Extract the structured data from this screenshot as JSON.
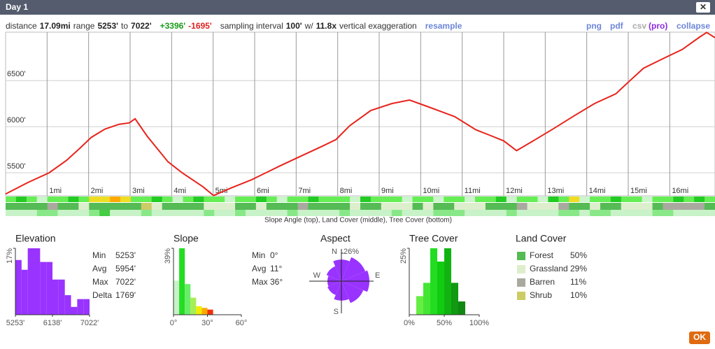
{
  "header": {
    "title": "Day 1",
    "close": "✕"
  },
  "stats_line": [
    {
      "text": "distance",
      "style": "n"
    },
    {
      "text": "17.09mi",
      "style": "b"
    },
    {
      "text": "range",
      "style": "n"
    },
    {
      "text": "5253'",
      "style": "b"
    },
    {
      "text": "to",
      "style": "n"
    },
    {
      "text": "7022'",
      "style": "b"
    },
    {
      "text": "+3396'",
      "style": "g"
    },
    {
      "text": "-1695'",
      "style": "r"
    },
    {
      "text": "sampling interval",
      "style": "n"
    },
    {
      "text": "100'",
      "style": "b"
    },
    {
      "text": "w/",
      "style": "n"
    },
    {
      "text": "11.8x",
      "style": "b"
    },
    {
      "text": "vertical exaggeration",
      "style": "n"
    },
    {
      "text": "resample",
      "style": "link"
    }
  ],
  "links": [
    "png",
    "pdf",
    "csv",
    "(pro)",
    "collapse"
  ],
  "link_colors": [
    "#6d86d8",
    "#6d86d8",
    "#aaaaaa",
    "#8a2be2",
    "#6d86d8"
  ],
  "chart_data": [
    {
      "type": "line",
      "color": "#e8231c",
      "x": [
        0,
        0.54,
        1.05,
        1.47,
        1.8,
        2.06,
        2.39,
        2.73,
        2.98,
        3.12,
        3.41,
        3.91,
        4.25,
        4.75,
        5.01,
        5.43,
        5.93,
        6.61,
        7.11,
        7.62,
        7.96,
        8.29,
        8.8,
        9.31,
        9.73,
        10.15,
        10.82,
        11.33,
        11.67,
        12.0,
        12.31,
        12.68,
        13.18,
        13.69,
        14.19,
        14.7,
        15.04,
        15.37,
        15.88,
        16.3,
        16.72,
        16.89,
        17.09
      ],
      "values": [
        5270,
        5395,
        5500,
        5635,
        5770,
        5883,
        5973,
        6026,
        6041,
        6086,
        5898,
        5620,
        5500,
        5350,
        5253,
        5335,
        5425,
        5575,
        5680,
        5786,
        5861,
        6011,
        6176,
        6251,
        6289,
        6221,
        6109,
        5966,
        5906,
        5846,
        5740,
        5838,
        5973,
        6116,
        6251,
        6356,
        6499,
        6634,
        6747,
        6837,
        6972,
        7022,
        6965
      ],
      "xlim": [
        0,
        17.09
      ],
      "ylim": [
        5250,
        7025
      ],
      "xticks": [
        {
          "value": 1,
          "label": "1mi"
        },
        {
          "value": 2,
          "label": "2mi"
        },
        {
          "value": 3,
          "label": "3mi"
        },
        {
          "value": 4,
          "label": "4mi"
        },
        {
          "value": 5,
          "label": "5mi"
        },
        {
          "value": 6,
          "label": "6mi"
        },
        {
          "value": 7,
          "label": "7mi"
        },
        {
          "value": 8,
          "label": "8mi"
        },
        {
          "value": 9,
          "label": "9mi"
        },
        {
          "value": 10,
          "label": "10mi"
        },
        {
          "value": 11,
          "label": "11mi"
        },
        {
          "value": 12,
          "label": "12mi"
        },
        {
          "value": 13,
          "label": "13mi"
        },
        {
          "value": 14,
          "label": "14mi"
        },
        {
          "value": 15,
          "label": "15mi"
        },
        {
          "value": 16,
          "label": "16mi"
        }
      ],
      "yticks": [
        {
          "value": 5500,
          "label": "5500'"
        },
        {
          "value": 6000,
          "label": "6000'"
        },
        {
          "value": 6500,
          "label": "6500'"
        }
      ],
      "grid": true
    },
    {
      "type": "histogram",
      "title": "Elevation",
      "color": "#9933ff",
      "bins": [
        5253,
        5400.4,
        5547.8,
        5695.3,
        5842.7,
        5990.1,
        6137.5,
        6284.9,
        6432.3,
        6579.8,
        6727.2,
        6874.6,
        7022
      ],
      "values": [
        14,
        11.5,
        17,
        17,
        13.5,
        13.5,
        9,
        9,
        5,
        2,
        4,
        4
      ],
      "xlim": [
        5253,
        7022
      ],
      "xticks": [
        {
          "value": 5253,
          "label": "5253'"
        },
        {
          "value": 6138,
          "label": "6138'"
        },
        {
          "value": 7022,
          "label": "7022'"
        }
      ],
      "ylim": [
        0,
        17
      ],
      "yticks": [
        {
          "value": 17,
          "label": "17%"
        }
      ],
      "stats": {
        "names": [
          "Min",
          "Avg",
          "Max",
          "Delta"
        ],
        "labels": [
          "5253'",
          "5954'",
          "7022'",
          "1769'"
        ]
      }
    },
    {
      "type": "histogram",
      "title": "Slope",
      "colors": [
        "#c8f2c8",
        "#22dd22",
        "#66ee66",
        "#a6ee55",
        "#eeee00",
        "#ffaa00",
        "#ee3300"
      ],
      "bins": [
        0,
        5,
        10,
        15,
        20,
        25,
        30,
        35
      ],
      "values": [
        20,
        39,
        18,
        10,
        5,
        4,
        3
      ],
      "xlim": [
        0,
        60
      ],
      "xticks": [
        {
          "value": 0,
          "label": "0°"
        },
        {
          "value": 30,
          "label": "30°"
        },
        {
          "value": 60,
          "label": "60°"
        }
      ],
      "ylim": [
        0,
        39
      ],
      "yticks": [
        {
          "value": 39,
          "label": "39%"
        }
      ],
      "stats": {
        "names": [
          "Min",
          "Avg",
          "Max"
        ],
        "labels": [
          "0°",
          "11°",
          "36°"
        ]
      }
    },
    {
      "type": "rose",
      "title": "Aspect",
      "color": "#9933ff",
      "categories": [
        "N",
        null,
        "E",
        null,
        "S",
        null,
        "W",
        null
      ],
      "values": [
        20,
        24,
        26,
        22,
        18,
        14,
        13,
        15
      ],
      "rlim": [
        0,
        26
      ],
      "rticks": [
        {
          "value": 26,
          "label": "26%"
        }
      ]
    },
    {
      "type": "histogram",
      "title": "Tree Cover",
      "colors": [
        "#88ee66",
        "#66ee44",
        "#44e633",
        "#22dd22",
        "#11cc11",
        "#11b311",
        "#119911",
        "#118811",
        "#117711",
        "#116611"
      ],
      "bins": [
        0,
        10,
        20,
        30,
        40,
        50,
        60,
        70,
        80,
        90,
        100
      ],
      "values": [
        0,
        7,
        12,
        25,
        20,
        25,
        12,
        5,
        0,
        0
      ],
      "xlim": [
        0,
        100
      ],
      "xticks": [
        {
          "value": 0,
          "label": "0%"
        },
        {
          "value": 50,
          "label": "50%"
        },
        {
          "value": 100,
          "label": "100%"
        }
      ],
      "ylim": [
        0,
        25
      ],
      "yticks": [
        {
          "value": 25,
          "label": "25%"
        }
      ]
    }
  ],
  "land_cover": {
    "title": "Land Cover",
    "names": [
      "Forest",
      "Grassland",
      "Barren",
      "Shrub"
    ],
    "labels": [
      "50%",
      "29%",
      "11%",
      "10%"
    ],
    "colors": [
      "#55bb55",
      "#ddeecc",
      "#aaa9a0",
      "#cccc66"
    ]
  },
  "strips": {
    "caption": "Slope Angle (top), Land Cover (middle), Tree Cover (bottom)",
    "palette": {
      "a": "#ccf5cc",
      "g": "#66ee55",
      "G": "#22cc22",
      "y": "#eedd22",
      "o": "#ffaa00",
      "f": "#55bb55",
      "l": "#ddeecc",
      "b": "#aaa9a0",
      "s": "#cccc66",
      "t": "#c8f2c8",
      "u": "#88e888",
      "v": "#44cc44"
    },
    "rows": [
      "gGgaggGgyyoyggGgagGggaggGgaggGgggaGgggaggaggaggGaggaGgyaggGggaggGgGg",
      "ffffbfflfffffslfffflllfflfffbfffflfflllflfflllfffblllbfflfflllfbbbbf",
      "tttuutttuvtttutttttuttuttttuttttuttttutttuuuttttuttttuutuuttttuutttt"
    ]
  },
  "ok": "OK"
}
